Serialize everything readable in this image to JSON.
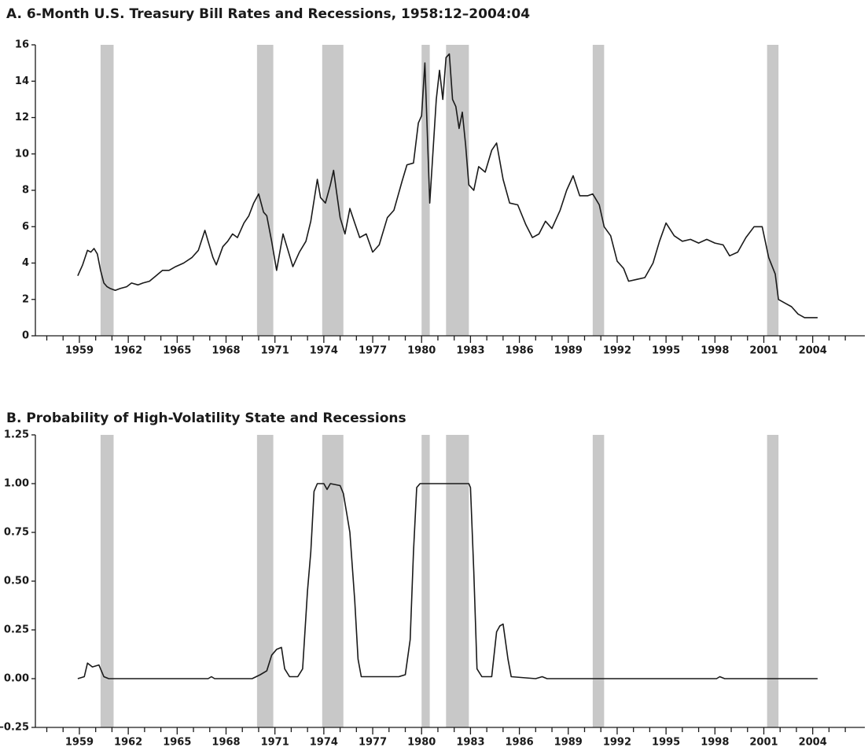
{
  "chart_data": [
    {
      "type": "line",
      "title": "A. 6-Month U.S. Treasury Bill Rates and Recessions, 1958:12–2004:04",
      "color": "#1a1a1a",
      "x": [
        1958.9,
        1959.2,
        1959.5,
        1959.7,
        1959.9,
        1960.1,
        1960.3,
        1960.5,
        1960.7,
        1960.9,
        1961.2,
        1961.5,
        1961.9,
        1962.2,
        1962.6,
        1962.9,
        1963.3,
        1963.7,
        1964.1,
        1964.5,
        1964.9,
        1965.4,
        1965.9,
        1966.3,
        1966.7,
        1966.9,
        1967.2,
        1967.4,
        1967.8,
        1968.1,
        1968.4,
        1968.7,
        1969.1,
        1969.4,
        1969.7,
        1970.0,
        1970.3,
        1970.5,
        1970.8,
        1971.1,
        1971.5,
        1971.8,
        1972.1,
        1972.5,
        1972.9,
        1973.2,
        1973.6,
        1973.8,
        1974.1,
        1974.4,
        1974.6,
        1974.8,
        1975.0,
        1975.3,
        1975.6,
        1975.9,
        1976.2,
        1976.6,
        1977.0,
        1977.4,
        1977.9,
        1978.3,
        1978.8,
        1979.1,
        1979.5,
        1979.8,
        1980.0,
        1980.2,
        1980.5,
        1980.9,
        1981.1,
        1981.3,
        1981.5,
        1981.7,
        1981.9,
        1982.1,
        1982.3,
        1982.5,
        1982.7,
        1982.9,
        1983.2,
        1983.5,
        1983.9,
        1984.3,
        1984.6,
        1985.0,
        1985.4,
        1985.9,
        1986.4,
        1986.8,
        1987.2,
        1987.6,
        1988.0,
        1988.5,
        1988.9,
        1989.3,
        1989.7,
        1990.2,
        1990.5,
        1990.9,
        1991.2,
        1991.6,
        1992.0,
        1992.4,
        1992.7,
        1993.2,
        1993.7,
        1994.2,
        1994.6,
        1995.0,
        1995.5,
        1996.0,
        1996.5,
        1997.0,
        1997.5,
        1998.0,
        1998.5,
        1998.9,
        1999.4,
        1999.9,
        2000.4,
        2000.9,
        2001.3,
        2001.7,
        2001.9,
        2002.3,
        2002.7,
        2003.1,
        2003.5,
        2004.0,
        2004.3
      ],
      "values": [
        3.3,
        3.9,
        4.7,
        4.6,
        4.8,
        4.5,
        3.6,
        2.9,
        2.7,
        2.6,
        2.5,
        2.6,
        2.7,
        2.9,
        2.8,
        2.9,
        3.0,
        3.3,
        3.6,
        3.6,
        3.8,
        4.0,
        4.3,
        4.7,
        5.8,
        5.2,
        4.3,
        3.9,
        4.9,
        5.2,
        5.6,
        5.4,
        6.2,
        6.6,
        7.3,
        7.8,
        6.8,
        6.6,
        5.2,
        3.6,
        5.6,
        4.7,
        3.8,
        4.6,
        5.2,
        6.3,
        8.6,
        7.6,
        7.3,
        8.3,
        9.1,
        7.8,
        6.5,
        5.6,
        7.0,
        6.2,
        5.4,
        5.6,
        4.6,
        5.0,
        6.5,
        6.9,
        8.5,
        9.4,
        9.5,
        11.7,
        12.1,
        15.0,
        7.3,
        13.0,
        14.6,
        13.0,
        15.3,
        15.5,
        13.0,
        12.6,
        11.4,
        12.3,
        10.5,
        8.3,
        8.0,
        9.3,
        9.0,
        10.2,
        10.6,
        8.6,
        7.3,
        7.2,
        6.1,
        5.4,
        5.6,
        6.3,
        5.9,
        6.9,
        8.0,
        8.8,
        7.7,
        7.7,
        7.8,
        7.2,
        6.0,
        5.5,
        4.1,
        3.7,
        3.0,
        3.1,
        3.2,
        4.0,
        5.2,
        6.2,
        5.5,
        5.2,
        5.3,
        5.1,
        5.3,
        5.1,
        5.0,
        4.4,
        4.6,
        5.4,
        6.0,
        6.0,
        4.3,
        3.4,
        2.0,
        1.8,
        1.6,
        1.2,
        1.0,
        1.0,
        1.0
      ],
      "recessions": [
        [
          1960.3,
          1961.1
        ],
        [
          1969.9,
          1970.9
        ],
        [
          1973.9,
          1975.2
        ],
        [
          1980.0,
          1980.5
        ],
        [
          1981.5,
          1982.9
        ],
        [
          1990.5,
          1991.2
        ],
        [
          2001.2,
          2001.9
        ]
      ],
      "recession_color": "#c8c8c8",
      "xlim": [
        1956.3,
        2007.2
      ],
      "ylim": [
        0,
        16
      ],
      "xticks": [
        1959,
        1962,
        1965,
        1968,
        1971,
        1974,
        1977,
        1980,
        1983,
        1986,
        1989,
        1992,
        1995,
        1998,
        2001,
        2004
      ],
      "minor_xticks": [
        1957,
        1958,
        1960,
        1961,
        1963,
        1964,
        1966,
        1967,
        1969,
        1970,
        1972,
        1973,
        1975,
        1976,
        1978,
        1979,
        1981,
        1982,
        1984,
        1985,
        1987,
        1988,
        1990,
        1991,
        1993,
        1994,
        1996,
        1997,
        1999,
        2000,
        2002,
        2003,
        2005,
        2006
      ],
      "yticks": [
        0,
        2,
        4,
        6,
        8,
        10,
        12,
        14,
        16
      ]
    },
    {
      "type": "line",
      "title": "B. Probability of High-Volatility State and Recessions",
      "color": "#1a1a1a",
      "x": [
        1958.9,
        1959.3,
        1959.5,
        1959.8,
        1960.2,
        1960.5,
        1960.8,
        1966.9,
        1967.1,
        1967.3,
        1969.6,
        1970.1,
        1970.5,
        1970.8,
        1971.1,
        1971.4,
        1971.6,
        1971.9,
        1972.4,
        1972.7,
        1973.0,
        1973.2,
        1973.4,
        1973.6,
        1974.0,
        1974.2,
        1974.4,
        1975.0,
        1975.2,
        1975.4,
        1975.6,
        1975.9,
        1976.1,
        1976.3,
        1978.6,
        1979.0,
        1979.3,
        1979.5,
        1979.7,
        1979.9,
        1982.9,
        1983.0,
        1983.2,
        1983.4,
        1983.7,
        1984.3,
        1984.6,
        1984.8,
        1985.0,
        1985.3,
        1985.5,
        1987.0,
        1987.4,
        1987.7,
        1998.1,
        1998.3,
        1998.6,
        2004.3
      ],
      "values": [
        0,
        0.01,
        0.08,
        0.06,
        0.07,
        0.01,
        0,
        0,
        0.01,
        0,
        0,
        0.02,
        0.04,
        0.12,
        0.15,
        0.16,
        0.05,
        0.01,
        0.01,
        0.05,
        0.45,
        0.65,
        0.96,
        1.0,
        1.0,
        0.97,
        1.0,
        0.99,
        0.95,
        0.85,
        0.75,
        0.4,
        0.1,
        0.01,
        0.01,
        0.02,
        0.2,
        0.65,
        0.98,
        1.0,
        1.0,
        0.98,
        0.55,
        0.05,
        0.01,
        0.01,
        0.24,
        0.27,
        0.28,
        0.1,
        0.01,
        0,
        0.01,
        0,
        0,
        0.01,
        0,
        0
      ],
      "recessions": [
        [
          1960.3,
          1961.1
        ],
        [
          1969.9,
          1970.9
        ],
        [
          1973.9,
          1975.2
        ],
        [
          1980.0,
          1980.5
        ],
        [
          1981.5,
          1982.9
        ],
        [
          1990.5,
          1991.2
        ],
        [
          2001.2,
          2001.9
        ]
      ],
      "recession_color": "#c8c8c8",
      "xlim": [
        1956.3,
        2007.2
      ],
      "ylim": [
        -0.25,
        1.25
      ],
      "xticks": [
        1959,
        1962,
        1965,
        1968,
        1971,
        1974,
        1977,
        1980,
        1983,
        1986,
        1989,
        1992,
        1995,
        1998,
        2001,
        2004
      ],
      "minor_xticks": [
        1957,
        1958,
        1960,
        1961,
        1963,
        1964,
        1966,
        1967,
        1969,
        1970,
        1972,
        1973,
        1975,
        1976,
        1978,
        1979,
        1981,
        1982,
        1984,
        1985,
        1987,
        1988,
        1990,
        1991,
        1993,
        1994,
        1996,
        1997,
        1999,
        2000,
        2002,
        2003,
        2005,
        2006
      ],
      "yticks": [
        {
          "value": -0.25,
          "label": "–0.25"
        },
        {
          "value": 0,
          "label": "0.00"
        },
        {
          "value": 0.25,
          "label": "0.25"
        },
        {
          "value": 0.5,
          "label": "0.50"
        },
        {
          "value": 0.75,
          "label": "0.75"
        },
        {
          "value": 1,
          "label": "1.00"
        },
        {
          "value": 1.25,
          "label": "1.25"
        }
      ]
    }
  ]
}
